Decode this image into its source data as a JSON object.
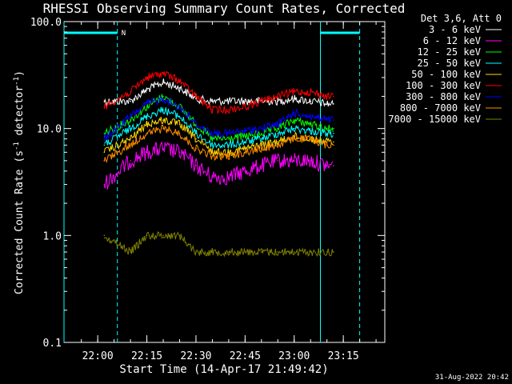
{
  "chart_data": {
    "type": "line",
    "title": "RHESSI Observing Summary Count Rates, Corrected",
    "xlabel": "Start Time (14-Apr-17 21:49:42)",
    "ylabel_main": "Corrected Count Rate (s",
    "ylabel_sup1": "-1",
    "ylabel_mid": " detector",
    "ylabel_sup2": "-1",
    "ylabel_end": ")",
    "yscale": "log",
    "ylim": [
      0.1,
      100.0
    ],
    "xlim": [
      "21:49:42",
      "23:27:40"
    ],
    "x_ticks": [
      "22:00",
      "22:15",
      "22:30",
      "22:45",
      "23:00",
      "23:15"
    ],
    "y_ticks": [
      "0.1",
      "1.0",
      "10.0",
      "100.0"
    ],
    "legend_header": "Det 3,6, Att 0",
    "series": [
      {
        "name": "3 - 6 keV",
        "color": "#ffffff",
        "x": [
          "22:02",
          "22:10",
          "22:15",
          "22:20",
          "22:25",
          "22:30",
          "22:35",
          "22:40",
          "22:45",
          "22:50",
          "22:55",
          "23:00",
          "23:05",
          "23:10",
          "23:12"
        ],
        "y": [
          18,
          18,
          23,
          27,
          24,
          19,
          18,
          18,
          18,
          18,
          18,
          19,
          18,
          17,
          17
        ]
      },
      {
        "name": "6 - 12 keV",
        "color": "#ff00ff",
        "x": [
          "22:02",
          "22:10",
          "22:15",
          "22:20",
          "22:25",
          "22:30",
          "22:35",
          "22:40",
          "22:45",
          "22:50",
          "22:55",
          "23:00",
          "23:05",
          "23:10",
          "23:12"
        ],
        "y": [
          3,
          5,
          6,
          6.5,
          6,
          4.5,
          3.5,
          3.5,
          4,
          4.5,
          5,
          5,
          5,
          4.5,
          4.5
        ]
      },
      {
        "name": "12 - 25 keV",
        "color": "#00ff00",
        "x": [
          "22:02",
          "22:10",
          "22:15",
          "22:20",
          "22:25",
          "22:30",
          "22:35",
          "22:40",
          "22:45",
          "22:50",
          "22:55",
          "23:00",
          "23:05",
          "23:10",
          "23:12"
        ],
        "y": [
          9,
          12,
          16,
          20,
          16,
          11,
          8,
          8,
          8.5,
          9,
          10,
          12,
          11,
          10,
          10
        ]
      },
      {
        "name": "25 - 50 keV",
        "color": "#00ffff",
        "x": [
          "22:02",
          "22:10",
          "22:15",
          "22:20",
          "22:25",
          "22:30",
          "22:35",
          "22:40",
          "22:45",
          "22:50",
          "22:55",
          "23:00",
          "23:05",
          "23:10",
          "23:12"
        ],
        "y": [
          7,
          10,
          13,
          15,
          13,
          9,
          7,
          7,
          7.5,
          8,
          9,
          10,
          9.5,
          9,
          9
        ]
      },
      {
        "name": "50 - 100 keV",
        "color": "#ffd700",
        "x": [
          "22:02",
          "22:10",
          "22:15",
          "22:20",
          "22:25",
          "22:30",
          "22:35",
          "22:40",
          "22:45",
          "22:50",
          "22:55",
          "23:00",
          "23:05",
          "23:10",
          "23:12"
        ],
        "y": [
          6,
          8,
          11,
          12,
          11,
          8,
          6,
          6,
          6.5,
          7,
          7.5,
          8.5,
          8,
          7.5,
          7.5
        ]
      },
      {
        "name": "100 - 300 keV",
        "color": "#ff0000",
        "x": [
          "22:02",
          "22:10",
          "22:15",
          "22:20",
          "22:25",
          "22:30",
          "22:35",
          "22:40",
          "22:45",
          "22:50",
          "22:55",
          "23:00",
          "23:05",
          "23:10",
          "23:12"
        ],
        "y": [
          16,
          22,
          30,
          33,
          28,
          20,
          15,
          15,
          16,
          18,
          20,
          22,
          22,
          20,
          20
        ]
      },
      {
        "name": "300 - 800 keV",
        "color": "#0000ff",
        "x": [
          "22:02",
          "22:10",
          "22:15",
          "22:20",
          "22:25",
          "22:30",
          "22:35",
          "22:40",
          "22:45",
          "22:50",
          "22:55",
          "23:00",
          "23:05",
          "23:10",
          "23:12"
        ],
        "y": [
          8,
          13,
          17,
          19,
          16,
          11,
          9,
          9,
          9.5,
          10,
          11,
          14,
          13,
          12,
          12
        ]
      },
      {
        "name": "800 - 7000 keV",
        "color": "#ff8c00",
        "x": [
          "22:02",
          "22:10",
          "22:15",
          "22:20",
          "22:25",
          "22:30",
          "22:35",
          "22:40",
          "22:45",
          "22:50",
          "22:55",
          "23:00",
          "23:05",
          "23:10",
          "23:12"
        ],
        "y": [
          5,
          7,
          9,
          10,
          9,
          6.5,
          5.5,
          5.5,
          6,
          6.5,
          7,
          8,
          8,
          7,
          7
        ]
      },
      {
        "name": "7000 - 15000 keV",
        "color": "#808000",
        "x": [
          "22:02",
          "22:10",
          "22:15",
          "22:20",
          "22:25",
          "22:30",
          "22:35",
          "22:40",
          "22:45",
          "22:50",
          "22:55",
          "23:00",
          "23:05",
          "23:10",
          "23:12"
        ],
        "y": [
          1.0,
          0.7,
          1.0,
          1.0,
          1.0,
          0.7,
          0.7,
          0.7,
          0.7,
          0.7,
          0.7,
          0.7,
          0.7,
          0.7,
          0.7
        ]
      }
    ],
    "night_lines": [
      "21:49:42",
      "22:06",
      "23:08",
      "23:20"
    ],
    "saa_segments": [
      [
        "21:49:42",
        "22:06"
      ],
      [
        "23:08",
        "23:20"
      ]
    ],
    "saa_marker": "N",
    "footer_date": "31-Aug-2022 20:42",
    "grid": false
  }
}
